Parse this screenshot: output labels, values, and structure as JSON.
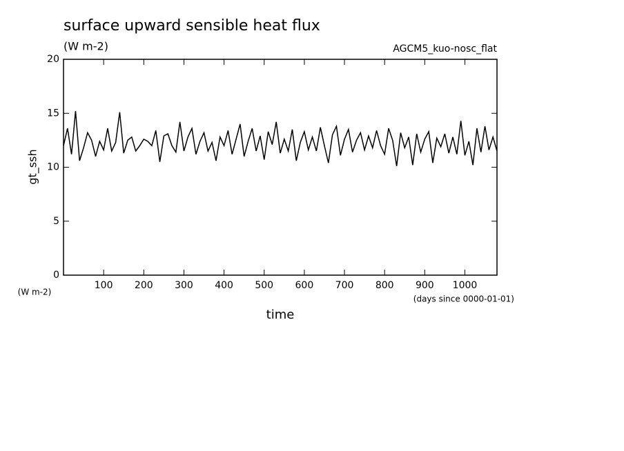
{
  "chart_data": {
    "type": "line",
    "title": "surface upward sensible heat flux",
    "subtitle": "(W m-2)",
    "annotation": "AGCM5_kuo-nosc_flat",
    "y_label": "gt_ssh",
    "y_unit": "(W m-2)",
    "x_label": "time",
    "x_unit": "(days since 0000-01-01)",
    "x": [
      0,
      10,
      20,
      30,
      40,
      50,
      60,
      70,
      80,
      90,
      100,
      110,
      120,
      130,
      140,
      150,
      160,
      170,
      180,
      190,
      200,
      210,
      220,
      230,
      240,
      250,
      260,
      270,
      280,
      290,
      300,
      310,
      320,
      330,
      340,
      350,
      360,
      370,
      380,
      390,
      400,
      410,
      420,
      430,
      440,
      450,
      460,
      470,
      480,
      490,
      500,
      510,
      520,
      530,
      540,
      550,
      560,
      570,
      580,
      590,
      600,
      610,
      620,
      630,
      640,
      650,
      660,
      670,
      680,
      690,
      700,
      710,
      720,
      730,
      740,
      750,
      760,
      770,
      780,
      790,
      800,
      810,
      820,
      830,
      840,
      850,
      860,
      870,
      880,
      890,
      900,
      910,
      920,
      930,
      940,
      950,
      960,
      970,
      980,
      990,
      1000,
      1010,
      1020,
      1030,
      1040,
      1050,
      1060,
      1070,
      1080
    ],
    "series": [
      {
        "name": "gt_ssh",
        "color": "#000000",
        "values": [
          12.0,
          13.6,
          11.2,
          15.2,
          10.6,
          11.8,
          13.2,
          12.5,
          11.0,
          12.4,
          11.6,
          13.6,
          11.5,
          12.3,
          15.1,
          11.3,
          12.5,
          12.8,
          11.5,
          12.0,
          12.6,
          12.4,
          12.0,
          13.4,
          10.5,
          12.9,
          13.1,
          12.0,
          11.4,
          14.2,
          11.5,
          12.8,
          13.6,
          11.2,
          12.4,
          13.2,
          11.5,
          12.3,
          10.6,
          12.8,
          12.0,
          13.4,
          11.2,
          12.6,
          14.0,
          11.0,
          12.4,
          13.6,
          11.5,
          12.9,
          10.7,
          13.3,
          12.1,
          14.2,
          11.3,
          12.6,
          11.5,
          13.5,
          10.6,
          12.3,
          13.3,
          11.6,
          12.8,
          11.5,
          13.7,
          12.0,
          10.4,
          13.0,
          13.8,
          11.1,
          12.6,
          13.5,
          11.4,
          12.5,
          13.2,
          11.6,
          12.9,
          11.8,
          13.4,
          12.0,
          11.2,
          13.6,
          12.5,
          10.1,
          13.2,
          11.8,
          12.8,
          10.2,
          13.1,
          11.4,
          12.6,
          13.3,
          10.4,
          12.7,
          11.9,
          13.1,
          11.3,
          12.8,
          11.2,
          14.3,
          11.1,
          12.4,
          10.2,
          13.6,
          11.4,
          13.8,
          11.6,
          12.8,
          11.5
        ]
      }
    ],
    "xlim": [
      0,
      1080
    ],
    "ylim": [
      0,
      20
    ],
    "xticks": [
      100,
      200,
      300,
      400,
      500,
      600,
      700,
      800,
      900,
      1000
    ],
    "yticks": [
      0,
      5,
      10,
      15,
      20
    ]
  }
}
